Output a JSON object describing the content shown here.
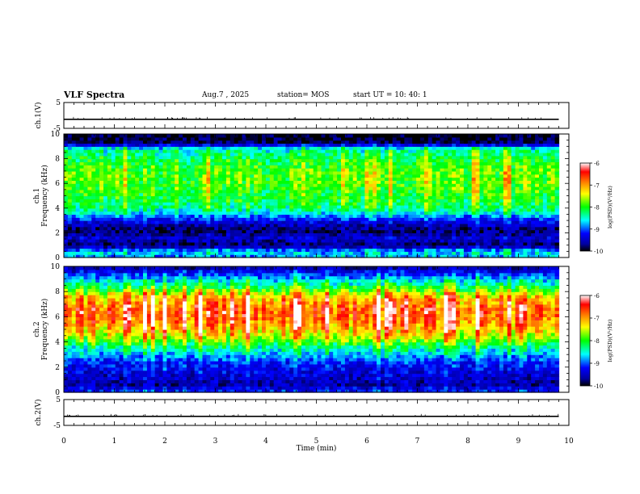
{
  "header": {
    "title": "VLF Spectra",
    "date": "Aug.7  , 2025",
    "station": "station= MOS",
    "start": "start  UT  =   10: 40: 1"
  },
  "chart_data": [
    {
      "type": "line",
      "id": "ch1-voltage",
      "ylabel": "ch.1(V)",
      "ylim": [
        -5,
        5
      ],
      "yticks": [
        "5",
        "-5"
      ],
      "series": [
        {
          "name": "ch.1 voltage",
          "level": -1.5
        }
      ]
    },
    {
      "type": "heatmap",
      "id": "ch1-spectrogram",
      "ylabel": "ch.1\nFrequency (kHz)",
      "ylabel_line1": "ch.1",
      "ylabel_line2": "Frequency (kHz)",
      "ylim": [
        0,
        10
      ],
      "yticks": [
        "0",
        "2",
        "4",
        "6",
        "8",
        "10"
      ],
      "xlim": [
        0,
        10
      ],
      "colorbar": {
        "label": "log(PSD)(V²/Hz)",
        "range": [
          -10,
          -6
        ],
        "ticks": [
          "-6",
          "-7",
          "-8",
          "-9",
          "-10"
        ]
      },
      "band_profile": [
        {
          "f": 0.2,
          "level": 0.3
        },
        {
          "f": 0.5,
          "level": 0.35
        },
        {
          "f": 1.0,
          "level": 0.05
        },
        {
          "f": 1.6,
          "level": 0.15
        },
        {
          "f": 2.2,
          "level": 0.05
        },
        {
          "f": 3.0,
          "level": 0.18
        },
        {
          "f": 4.0,
          "level": 0.45
        },
        {
          "f": 5.0,
          "level": 0.5
        },
        {
          "f": 6.0,
          "level": 0.55
        },
        {
          "f": 7.0,
          "level": 0.55
        },
        {
          "f": 8.0,
          "level": 0.48
        },
        {
          "f": 8.8,
          "level": 0.4
        },
        {
          "f": 9.3,
          "level": 0.05
        },
        {
          "f": 10.0,
          "level": 0.0
        }
      ]
    },
    {
      "type": "heatmap",
      "id": "ch2-spectrogram",
      "ylabel": "ch.2\nFrequency (kHz)",
      "ylabel_line1": "ch.2",
      "ylabel_line2": "Frequency (kHz)",
      "ylim": [
        0,
        10
      ],
      "yticks": [
        "0",
        "2",
        "4",
        "6",
        "8",
        "10"
      ],
      "xlim": [
        0,
        10
      ],
      "colorbar": {
        "label": "log(PSD)(V²/Hz)",
        "range": [
          -10,
          -6
        ],
        "ticks": [
          "-6",
          "-7",
          "-8",
          "-9",
          "-10"
        ]
      },
      "band_profile": [
        {
          "f": 0.2,
          "level": 0.2
        },
        {
          "f": 0.6,
          "level": 0.1
        },
        {
          "f": 1.5,
          "level": 0.15
        },
        {
          "f": 2.5,
          "level": 0.22
        },
        {
          "f": 3.5,
          "level": 0.4
        },
        {
          "f": 4.5,
          "level": 0.65
        },
        {
          "f": 5.5,
          "level": 0.8
        },
        {
          "f": 6.5,
          "level": 0.85
        },
        {
          "f": 7.5,
          "level": 0.75
        },
        {
          "f": 8.3,
          "level": 0.5
        },
        {
          "f": 9.0,
          "level": 0.32
        },
        {
          "f": 9.6,
          "level": 0.18
        },
        {
          "f": 10.0,
          "level": 0.08
        }
      ]
    },
    {
      "type": "line",
      "id": "ch2-voltage",
      "ylabel": "ch.2(V)",
      "ylim": [
        -5,
        5
      ],
      "yticks": [
        "5",
        "-5"
      ],
      "series": [
        {
          "name": "ch.2 voltage",
          "level": -1.5
        }
      ]
    }
  ],
  "x_axis": {
    "label": "Time  (min)",
    "range": [
      0,
      10
    ],
    "ticks": [
      "0",
      "1",
      "2",
      "3",
      "4",
      "5",
      "6",
      "7",
      "8",
      "9",
      "10"
    ],
    "data_end": 9.8
  },
  "colors": {
    "colormap": [
      "#000000",
      "#00008b",
      "#0000ff",
      "#0080ff",
      "#00ffff",
      "#00ff80",
      "#00ff00",
      "#80ff00",
      "#ffff00",
      "#ff8000",
      "#ff0000",
      "#ffffff"
    ]
  }
}
